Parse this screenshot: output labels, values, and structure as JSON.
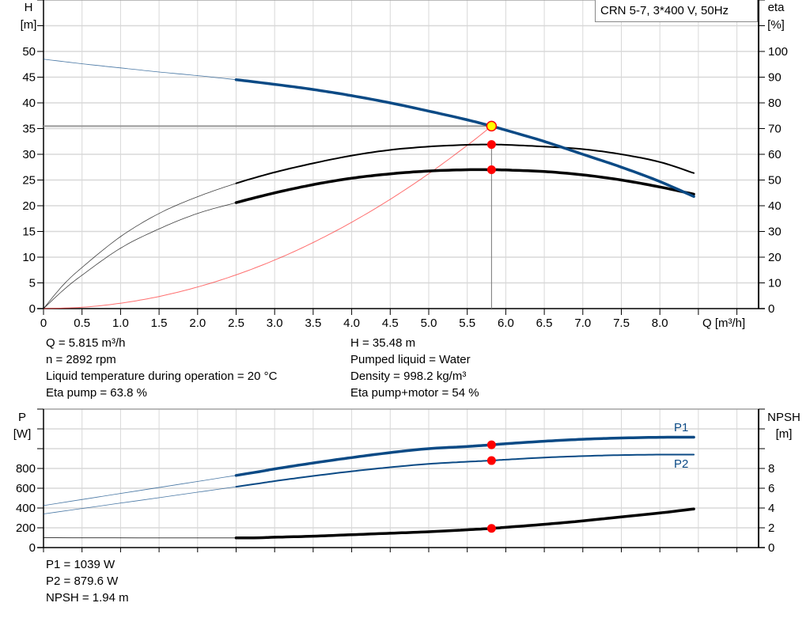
{
  "title_box": "CRN 5-7, 3*400 V, 50Hz",
  "colors": {
    "head": "#0b4a85",
    "power": "#0b4a85",
    "efficiency": "#000000",
    "system": "#ff4040",
    "operating_point": "#ff0000",
    "duty_point": "#ffff00",
    "grid": "#d8d8d8"
  },
  "chart_data": [
    {
      "type": "line",
      "xlabel": "Q [m³/h]",
      "ylabel_left": [
        "H",
        "[m]"
      ],
      "ylabel_right": [
        "eta",
        "[%]"
      ],
      "xlim": [
        0,
        9.28
      ],
      "ylim_left": [
        0,
        60
      ],
      "ylim_right": [
        0,
        120
      ],
      "x_ticks": [
        "0",
        "0.5",
        "1.0",
        "1.5",
        "2.0",
        "2.5",
        "3.0",
        "3.5",
        "4.0",
        "4.5",
        "5.0",
        "5.5",
        "6.0",
        "6.5",
        "7.0",
        "7.5",
        "8.0"
      ],
      "y_ticks_left": [
        "0",
        "5",
        "10",
        "15",
        "20",
        "25",
        "30",
        "35",
        "40",
        "45",
        "50"
      ],
      "y_ticks_right": [
        "0",
        "10",
        "20",
        "30",
        "40",
        "50",
        "60",
        "70",
        "80",
        "90",
        "100"
      ],
      "grid": true,
      "series": [
        {
          "key": "H",
          "axis": "left",
          "x": [
            0,
            0.5,
            1,
            1.5,
            2,
            2.5,
            3,
            3.5,
            4,
            4.5,
            5,
            5.5,
            5.815,
            6,
            6.5,
            7,
            7.5,
            8,
            8.44
          ],
          "y": [
            48.5,
            47.6,
            46.8,
            46.0,
            45.3,
            44.5,
            43.6,
            42.6,
            41.4,
            40.0,
            38.4,
            36.7,
            35.48,
            34.7,
            32.5,
            30.0,
            27.5,
            24.7,
            21.8
          ]
        },
        {
          "key": "eta_pump",
          "axis": "right",
          "x": [
            0,
            0.25,
            0.5,
            1,
            1.5,
            2,
            2.5,
            3,
            3.5,
            4,
            4.5,
            5,
            5.5,
            5.815,
            6,
            6.5,
            7,
            7.5,
            8,
            8.44
          ],
          "y": [
            0,
            9,
            16,
            28,
            37,
            43.5,
            48.7,
            53,
            56.5,
            59.5,
            61.7,
            63.0,
            63.7,
            63.8,
            63.7,
            63.0,
            62.0,
            60.0,
            57.0,
            52.7
          ]
        },
        {
          "key": "eta_pump_motor",
          "axis": "right",
          "x": [
            0,
            0.25,
            0.5,
            1,
            1.5,
            2,
            2.5,
            3,
            3.5,
            4,
            4.5,
            5,
            5.5,
            5.815,
            6,
            6.5,
            7,
            7.5,
            8,
            8.44
          ],
          "y": [
            0,
            7,
            13,
            23.5,
            31,
            37,
            41.2,
            45,
            48.2,
            50.7,
            52.4,
            53.5,
            54.0,
            54.0,
            53.9,
            53.3,
            52.0,
            50.0,
            47.3,
            44.5
          ]
        },
        {
          "key": "system",
          "axis": "left",
          "x": [
            0,
            0.5,
            1,
            1.5,
            2,
            2.5,
            3,
            3.5,
            4,
            4.5,
            5,
            5.5,
            5.815
          ],
          "y": [
            0,
            0.26,
            1.05,
            2.36,
            4.2,
            6.56,
            9.44,
            12.85,
            16.79,
            21.25,
            26.23,
            31.74,
            35.48
          ]
        }
      ],
      "operating_point": {
        "Q": 5.815,
        "H": 35.48,
        "eta_pump": 63.8,
        "eta_pump_motor": 54
      }
    },
    {
      "type": "line",
      "ylabel_left": [
        "P",
        "[W]"
      ],
      "ylabel_right": [
        "NPSH",
        "[m]"
      ],
      "xlim": [
        0,
        9.28
      ],
      "ylim_left": [
        0,
        1400
      ],
      "ylim_right": [
        0,
        14
      ],
      "y_ticks_left": [
        "0",
        "200",
        "400",
        "600",
        "800",
        "",
        ""
      ],
      "y_ticks_right": [
        "0",
        "2",
        "4",
        "6",
        "8",
        "",
        ""
      ],
      "grid": true,
      "series": [
        {
          "key": "P1",
          "name": "P1",
          "axis": "left",
          "x": [
            0,
            2.5,
            3,
            3.5,
            4,
            4.5,
            5,
            5.5,
            5.815,
            6,
            6.5,
            7,
            7.5,
            8,
            8.44
          ],
          "y": [
            425,
            730,
            795,
            855,
            910,
            960,
            1000,
            1022,
            1039,
            1050,
            1075,
            1095,
            1108,
            1115,
            1116
          ]
        },
        {
          "key": "P2",
          "name": "P2",
          "axis": "left",
          "x": [
            0,
            2.5,
            3,
            3.5,
            4,
            4.5,
            5,
            5.5,
            5.815,
            6,
            6.5,
            7,
            7.5,
            8,
            8.44
          ],
          "y": [
            340,
            615,
            672,
            724,
            771,
            812,
            846,
            868,
            879.6,
            889,
            910,
            925,
            935,
            940,
            940
          ]
        },
        {
          "key": "NPSH",
          "axis": "right",
          "x": [
            0,
            2.5,
            3,
            3.5,
            4,
            4.5,
            5,
            5.5,
            5.815,
            6,
            6.5,
            7,
            7.5,
            8,
            8.44
          ],
          "y": [
            1.0,
            0.98,
            1.05,
            1.15,
            1.3,
            1.45,
            1.6,
            1.8,
            1.94,
            2.05,
            2.35,
            2.7,
            3.1,
            3.5,
            3.9
          ]
        }
      ],
      "operating_point": {
        "Q": 5.815,
        "P1": 1039,
        "P2": 879.6,
        "NPSH": 1.94
      }
    }
  ],
  "results_top_left": [
    "Q = 5.815 m³/h",
    "n = 2892 rpm",
    "Liquid temperature during operation = 20 °C",
    "Eta pump = 63.8 %"
  ],
  "results_top_right": [
    "H = 35.48 m",
    "Pumped liquid = Water",
    "Density = 998.2 kg/m³",
    "Eta pump+motor = 54 %"
  ],
  "results_bottom": [
    "P1 = 1039 W",
    "P2 = 879.6 W",
    "NPSH = 1.94 m"
  ]
}
